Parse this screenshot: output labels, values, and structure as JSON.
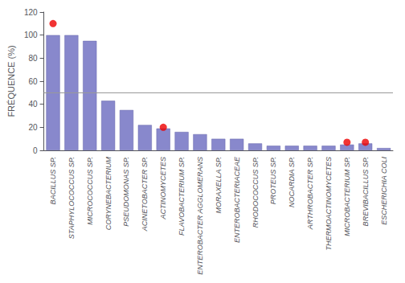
{
  "chart_data": {
    "type": "bar",
    "categories": [
      "BACILLUS SP.",
      "STAPHYLOCOCCUS SP.",
      "MICROCOCCUS SP.",
      "CORYNEBACTERIUM",
      "PSEUDOMONAS SP.",
      "ACINETOBACTER SP.",
      "ACTINOMYCETES",
      "FLAVOBACTERIUM SP.",
      "ENTEROBACTER AGGLOMERANS",
      "MORAXELLA SP.",
      "ENTEROBACTERIACEAE",
      "RHODOCOCCUS SP.",
      "PROTEUS SP.",
      "NOCARDIA SP.",
      "ARTHROBACTER SP.",
      "THERMOACTINOMYCETES",
      "MICROBACTERIUM SP.",
      "BREVIBACILLUS SP.",
      "ESCHERICHIA COLI"
    ],
    "series": [
      {
        "type": "bar",
        "color": "#8888cc",
        "values": [
          100,
          100,
          95,
          43,
          35,
          22,
          19,
          16,
          14,
          10,
          10,
          6,
          4,
          4,
          4,
          4,
          5,
          6,
          2
        ]
      },
      {
        "type": "scatter",
        "color": "#ee0000",
        "marker": "circle",
        "values": [
          110,
          null,
          null,
          null,
          null,
          null,
          20,
          null,
          null,
          null,
          null,
          null,
          null,
          null,
          null,
          null,
          7,
          7,
          null
        ]
      }
    ],
    "hline": 50,
    "ylabel": "FRÉQUENCE (%)",
    "ylim": [
      0,
      120
    ],
    "yticks": [
      0,
      20,
      40,
      60,
      80,
      100,
      120
    ],
    "grid": false
  }
}
